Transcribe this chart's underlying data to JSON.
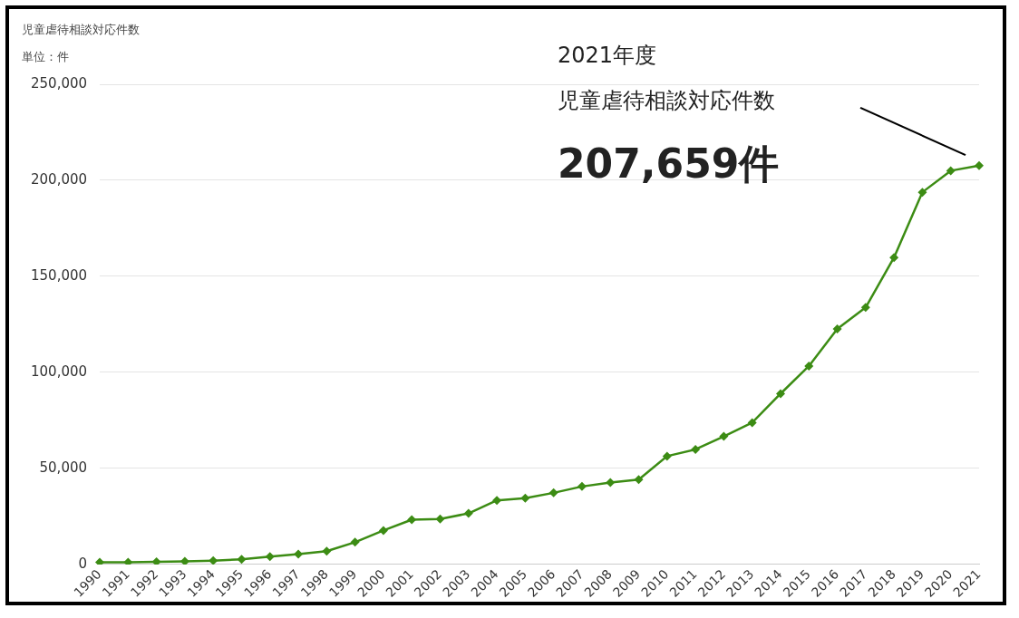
{
  "chart_data": {
    "type": "line",
    "title": "児童虐待相談対応件数",
    "subtitle": "単位：件",
    "categories": [
      "1990",
      "1991",
      "1992",
      "1993",
      "1994",
      "1995",
      "1996",
      "1997",
      "1998",
      "1999",
      "2000",
      "2001",
      "2002",
      "2003",
      "2004",
      "2005",
      "2006",
      "2007",
      "2008",
      "2009",
      "2010",
      "2011",
      "2012",
      "2013",
      "2014",
      "2015",
      "2016",
      "2017",
      "2018",
      "2019",
      "2020",
      "2021"
    ],
    "series": [
      {
        "color": "#3c8c14",
        "values": [
          1100,
          1200,
          1400,
          1600,
          2000,
          2700,
          4100,
          5400,
          6900,
          11600,
          17700,
          23300,
          23700,
          26600,
          33400,
          34500,
          37300,
          40600,
          42700,
          44200,
          56400,
          59900,
          66700,
          73800,
          88900,
          103300,
          122600,
          133800,
          159800,
          193800,
          205000,
          207700
        ]
      }
    ],
    "ylim": [
      0,
      250000
    ],
    "yticks": [
      {
        "value": 0,
        "label": "0"
      },
      {
        "value": 50000,
        "label": "50,000"
      },
      {
        "value": 100000,
        "label": "100,000"
      },
      {
        "value": 150000,
        "label": "150,000"
      },
      {
        "value": 200000,
        "label": "200,000"
      },
      {
        "value": 250000,
        "label": "250,000"
      }
    ],
    "grid": "y",
    "legend": false,
    "marker": "diamond",
    "line_style": "solid",
    "annotations": [
      "2021年度",
      "児童虐待相談対応件数",
      "207,659件"
    ]
  }
}
